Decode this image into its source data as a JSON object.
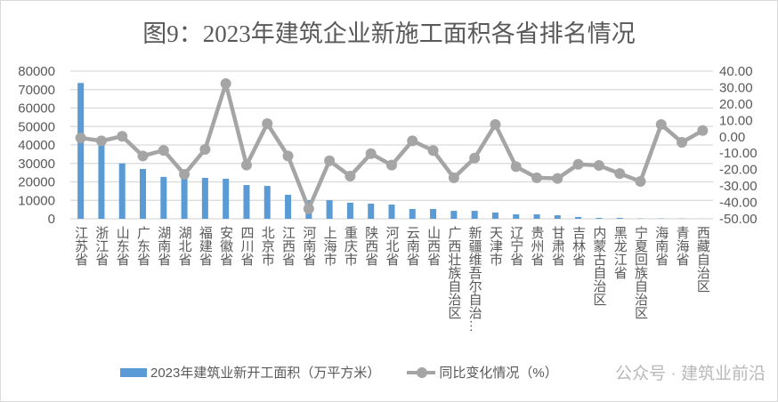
{
  "chart_data": {
    "type": "bar+line",
    "title": "图9：2023年建筑企业新施工面积各省排名情况",
    "categories": [
      "江苏省",
      "浙江省",
      "山东省",
      "广东省",
      "湖南省",
      "湖北省",
      "福建省",
      "安徽省",
      "四川省",
      "北京市",
      "江西省",
      "河南省",
      "上海市",
      "重庆市",
      "陕西省",
      "河北省",
      "云南省",
      "山西省",
      "广西壮族自治区",
      "新疆维吾尔自治…",
      "天津市",
      "辽宁省",
      "贵州省",
      "甘肃省",
      "吉林省",
      "内蒙古自治区",
      "黑龙江省",
      "宁夏回族自治区",
      "海南省",
      "青海省",
      "西藏自治区"
    ],
    "series": [
      {
        "name": "2023年建筑业新开工面积（万平方米）",
        "type": "bar",
        "axis": "left",
        "color": "#5b9bd5",
        "values": [
          73600,
          42000,
          30000,
          27000,
          22700,
          22000,
          22200,
          21700,
          18300,
          17800,
          13000,
          10100,
          10100,
          8700,
          8200,
          7700,
          5300,
          5300,
          4300,
          4300,
          3400,
          2400,
          2400,
          1900,
          1000,
          500,
          500,
          150,
          150,
          100,
          50
        ]
      },
      {
        "name": "同比变化情况（%）",
        "type": "line",
        "axis": "right",
        "color": "#a5a5a5",
        "values": [
          -0.7,
          -2.5,
          0.3,
          -11.7,
          -8.3,
          -22.9,
          -7.7,
          32.4,
          -17.3,
          8.0,
          -11.7,
          -43.9,
          -14.6,
          -24.0,
          -10.3,
          -17.3,
          -2.5,
          -8.4,
          -25.0,
          -13.0,
          7.5,
          -18.2,
          -25.0,
          -25.4,
          -16.8,
          -17.5,
          -22.4,
          -27.2,
          7.5,
          -3.4,
          3.8
        ]
      }
    ],
    "left_axis": {
      "ylim": [
        0,
        80000
      ],
      "ticks": [
        "0",
        "10000",
        "20000",
        "30000",
        "40000",
        "50000",
        "60000",
        "70000",
        "80000"
      ]
    },
    "right_axis": {
      "ylim": [
        -50,
        40
      ],
      "ticks": [
        "-50.00",
        "-40.00",
        "-30.00",
        "-20.00",
        "-10.00",
        "0.00",
        "10.00",
        "20.00",
        "30.00",
        "40.00"
      ]
    },
    "grid": true,
    "legend": "bottom"
  },
  "watermark": "公众号 · 建筑业前沿"
}
